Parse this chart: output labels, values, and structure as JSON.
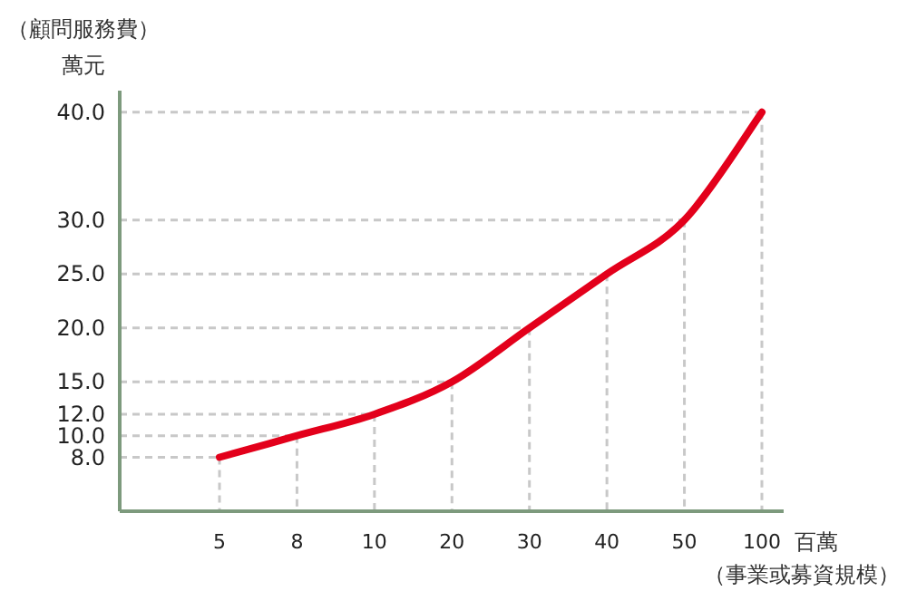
{
  "chart_data": {
    "type": "line",
    "title": "（顧問服務費）",
    "ylabel": "萬元",
    "xlabel": "百萬",
    "annotations": [
      "（事業或募資規模）"
    ],
    "categories": [
      "5",
      "8",
      "10",
      "20",
      "30",
      "40",
      "50",
      "100"
    ],
    "series": [
      {
        "color": "#e3001b",
        "values": [
          8,
          10,
          12,
          15,
          20,
          25,
          30,
          40
        ]
      }
    ],
    "ylim": [
      3,
      42
    ],
    "yticks": [
      {
        "value": 8,
        "label": "8.0"
      },
      {
        "value": 10,
        "label": "10.0"
      },
      {
        "value": 12,
        "label": "12.0"
      },
      {
        "value": 15,
        "label": "15.0"
      },
      {
        "value": 20,
        "label": "20.0"
      },
      {
        "value": 25,
        "label": "25.0"
      },
      {
        "value": 30,
        "label": "30.0"
      },
      {
        "value": 40,
        "label": "40.0"
      }
    ],
    "ref_lines": [
      {
        "axis": "y",
        "value": 8,
        "color": "#c8c8c8",
        "line_style": "dashed"
      },
      {
        "axis": "y",
        "value": 10,
        "color": "#c8c8c8",
        "line_style": "dashed"
      },
      {
        "axis": "y",
        "value": 12,
        "color": "#c8c8c8",
        "line_style": "dashed"
      },
      {
        "axis": "y",
        "value": 15,
        "color": "#c8c8c8",
        "line_style": "dashed"
      },
      {
        "axis": "y",
        "value": 20,
        "color": "#c8c8c8",
        "line_style": "dashed"
      },
      {
        "axis": "y",
        "value": 25,
        "color": "#c8c8c8",
        "line_style": "dashed"
      },
      {
        "axis": "y",
        "value": 30,
        "color": "#c8c8c8",
        "line_style": "dashed"
      },
      {
        "axis": "y",
        "value": 40,
        "color": "#c8c8c8",
        "line_style": "dashed"
      },
      {
        "axis": "x",
        "value": "5",
        "color": "#c8c8c8",
        "line_style": "dashed"
      },
      {
        "axis": "x",
        "value": "8",
        "color": "#c8c8c8",
        "line_style": "dashed"
      },
      {
        "axis": "x",
        "value": "10",
        "color": "#c8c8c8",
        "line_style": "dashed"
      },
      {
        "axis": "x",
        "value": "20",
        "color": "#c8c8c8",
        "line_style": "dashed"
      },
      {
        "axis": "x",
        "value": "30",
        "color": "#c8c8c8",
        "line_style": "dashed"
      },
      {
        "axis": "x",
        "value": "40",
        "color": "#c8c8c8",
        "line_style": "dashed"
      },
      {
        "axis": "x",
        "value": "50",
        "color": "#c8c8c8",
        "line_style": "dashed"
      },
      {
        "axis": "x",
        "value": "100",
        "color": "#c8c8c8",
        "line_style": "dashed"
      }
    ],
    "marker": "none",
    "line_style": "solid"
  }
}
